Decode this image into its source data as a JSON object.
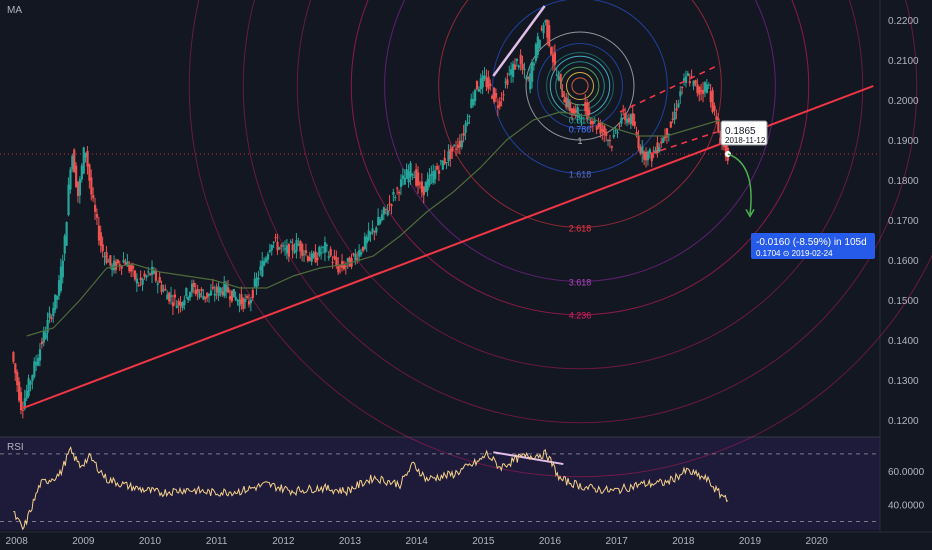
{
  "indicators": {
    "main": "MA",
    "sub": "RSI"
  },
  "price_axis": [
    "0.2200",
    "0.2100",
    "0.2000",
    "0.1900",
    "0.1800",
    "0.1700",
    "0.1600",
    "0.1500",
    "0.1400",
    "0.1300",
    "0.1200"
  ],
  "rsi_axis": [
    "60.0000",
    "40.0000"
  ],
  "time_axis": [
    "2008",
    "2009",
    "2010",
    "2011",
    "2012",
    "2013",
    "2014",
    "2015",
    "2016",
    "2017",
    "2018",
    "2019",
    "2020"
  ],
  "fib_labels": [
    "0.618",
    "0.786",
    "1",
    "1.618",
    "2.618",
    "3.618",
    "4.236"
  ],
  "current_price": {
    "value": "0.1865",
    "date": "2018-11-12"
  },
  "projection": {
    "change": "-0.0160 (-8.59%) in 105d",
    "target": "0.1704",
    "target_date": "2019-02-24"
  },
  "colors": {
    "background": "#131722",
    "up": "#26a69a",
    "down": "#ef5350",
    "trendline": "#f23645",
    "ma": "#4e6a3c",
    "rsi": "#f5d18a",
    "projection": "#2962ff",
    "arrow": "#4caf50"
  },
  "chart_data": {
    "type": "line",
    "series": [
      {
        "values": [
          [
            2008.0,
            0.137
          ],
          [
            2008.15,
            0.123
          ],
          [
            2008.3,
            0.131
          ],
          [
            2008.5,
            0.142
          ],
          [
            2008.7,
            0.152
          ],
          [
            2008.8,
            0.165
          ],
          [
            2008.9,
            0.188
          ],
          [
            2009.0,
            0.176
          ],
          [
            2009.1,
            0.189
          ],
          [
            2009.2,
            0.176
          ],
          [
            2009.35,
            0.163
          ],
          [
            2009.5,
            0.158
          ],
          [
            2009.7,
            0.16
          ],
          [
            2009.9,
            0.154
          ],
          [
            2010.1,
            0.157
          ],
          [
            2010.3,
            0.152
          ],
          [
            2010.5,
            0.149
          ],
          [
            2010.7,
            0.153
          ],
          [
            2010.9,
            0.151
          ],
          [
            2011.2,
            0.153
          ],
          [
            2011.4,
            0.15
          ],
          [
            2011.55,
            0.149
          ],
          [
            2011.7,
            0.156
          ],
          [
            2011.9,
            0.165
          ],
          [
            2012.1,
            0.162
          ],
          [
            2012.3,
            0.164
          ],
          [
            2012.5,
            0.16
          ],
          [
            2012.7,
            0.163
          ],
          [
            2012.9,
            0.158
          ],
          [
            2013.05,
            0.159
          ],
          [
            2013.25,
            0.163
          ],
          [
            2013.45,
            0.168
          ],
          [
            2013.6,
            0.172
          ],
          [
            2013.8,
            0.178
          ],
          [
            2014.0,
            0.183
          ],
          [
            2014.15,
            0.177
          ],
          [
            2014.35,
            0.182
          ],
          [
            2014.55,
            0.186
          ],
          [
            2014.75,
            0.19
          ],
          [
            2014.95,
            0.203
          ],
          [
            2015.1,
            0.205
          ],
          [
            2015.3,
            0.199
          ],
          [
            2015.45,
            0.206
          ],
          [
            2015.6,
            0.21
          ],
          [
            2015.75,
            0.204
          ],
          [
            2015.9,
            0.215
          ],
          [
            2016.0,
            0.22
          ],
          [
            2016.15,
            0.208
          ],
          [
            2016.3,
            0.2
          ],
          [
            2016.45,
            0.196
          ],
          [
            2016.6,
            0.198
          ],
          [
            2016.75,
            0.194
          ],
          [
            2016.9,
            0.192
          ],
          [
            2017.0,
            0.189
          ],
          [
            2017.15,
            0.196
          ],
          [
            2017.3,
            0.195
          ],
          [
            2017.45,
            0.187
          ],
          [
            2017.6,
            0.186
          ],
          [
            2017.75,
            0.19
          ],
          [
            2017.9,
            0.194
          ],
          [
            2018.05,
            0.203
          ],
          [
            2018.15,
            0.206
          ],
          [
            2018.3,
            0.202
          ],
          [
            2018.45,
            0.204
          ],
          [
            2018.6,
            0.192
          ],
          [
            2018.72,
            0.1865
          ]
        ]
      },
      {
        "values": [
          [
            2008.2,
            0.141
          ],
          [
            2008.6,
            0.143
          ],
          [
            2009.0,
            0.15
          ],
          [
            2009.4,
            0.158
          ],
          [
            2009.8,
            0.159
          ],
          [
            2010.2,
            0.157
          ],
          [
            2010.6,
            0.156
          ],
          [
            2011.0,
            0.155
          ],
          [
            2011.4,
            0.153
          ],
          [
            2011.8,
            0.153
          ],
          [
            2012.2,
            0.156
          ],
          [
            2012.6,
            0.158
          ],
          [
            2013.0,
            0.159
          ],
          [
            2013.4,
            0.161
          ],
          [
            2013.8,
            0.166
          ],
          [
            2014.2,
            0.172
          ],
          [
            2014.6,
            0.177
          ],
          [
            2015.0,
            0.183
          ],
          [
            2015.4,
            0.19
          ],
          [
            2015.8,
            0.195
          ],
          [
            2016.2,
            0.197
          ],
          [
            2016.6,
            0.196
          ],
          [
            2017.0,
            0.193
          ],
          [
            2017.4,
            0.191
          ],
          [
            2017.8,
            0.191
          ],
          [
            2018.2,
            0.193
          ],
          [
            2018.6,
            0.195
          ]
        ]
      },
      {
        "values": [
          [
            2008.0,
            35
          ],
          [
            2008.15,
            25
          ],
          [
            2008.4,
            52
          ],
          [
            2008.7,
            58
          ],
          [
            2008.85,
            72
          ],
          [
            2009.0,
            63
          ],
          [
            2009.15,
            68
          ],
          [
            2009.4,
            55
          ],
          [
            2009.8,
            50
          ],
          [
            2010.2,
            47
          ],
          [
            2010.6,
            49
          ],
          [
            2011.0,
            47
          ],
          [
            2011.4,
            48
          ],
          [
            2011.8,
            52
          ],
          [
            2012.2,
            48
          ],
          [
            2012.6,
            50
          ],
          [
            2013.0,
            48
          ],
          [
            2013.4,
            56
          ],
          [
            2013.8,
            52
          ],
          [
            2014.0,
            64
          ],
          [
            2014.2,
            55
          ],
          [
            2014.6,
            58
          ],
          [
            2015.0,
            66
          ],
          [
            2015.1,
            70
          ],
          [
            2015.3,
            62
          ],
          [
            2015.6,
            68
          ],
          [
            2016.0,
            70
          ],
          [
            2016.2,
            55
          ],
          [
            2016.6,
            50
          ],
          [
            2017.0,
            48
          ],
          [
            2017.4,
            52
          ],
          [
            2017.8,
            53
          ],
          [
            2018.1,
            60
          ],
          [
            2018.4,
            55
          ],
          [
            2018.6,
            46
          ],
          [
            2018.72,
            44
          ]
        ]
      }
    ],
    "trendlines": [
      {
        "from": [
          2008.15,
          0.123
        ],
        "to": [
          2020.9,
          0.2035
        ]
      }
    ],
    "fib_levels": [
      0.618,
      0.786,
      1,
      1.618,
      2.618,
      3.618,
      4.236
    ],
    "xlim": [
      2007.8,
      2021.0
    ],
    "ylim": [
      0.116,
      0.225
    ],
    "rsi_ylim": [
      25,
      80
    ]
  }
}
